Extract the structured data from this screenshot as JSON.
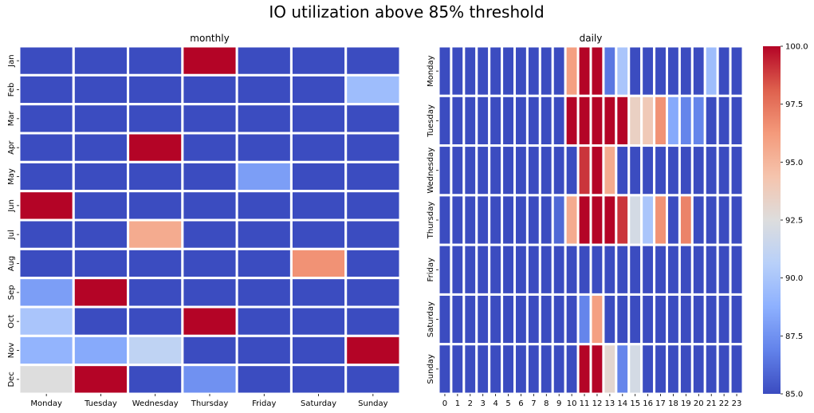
{
  "title": "IO utilization above 85% threshold",
  "chart_data": [
    {
      "type": "heatmap",
      "title": "monthly",
      "x_categories": [
        "Monday",
        "Tuesday",
        "Wednesday",
        "Thursday",
        "Friday",
        "Saturday",
        "Sunday"
      ],
      "y_categories": [
        "Jan",
        "Feb",
        "Mar",
        "Apr",
        "May",
        "Jun",
        "Jul",
        "Aug",
        "Sep",
        "Oct",
        "Nov",
        "Dec"
      ],
      "values": [
        [
          85,
          85,
          85,
          100,
          85,
          85,
          85
        ],
        [
          85,
          85,
          85,
          85,
          85,
          85,
          89.5
        ],
        [
          85,
          85,
          85,
          85,
          85,
          85,
          85
        ],
        [
          85,
          85,
          100,
          85,
          85,
          85,
          85
        ],
        [
          85,
          85,
          85,
          85,
          88,
          85,
          85
        ],
        [
          100,
          85,
          85,
          85,
          85,
          85,
          85
        ],
        [
          85,
          85,
          95.5,
          85,
          85,
          85,
          85
        ],
        [
          85,
          85,
          85,
          85,
          85,
          96.5,
          85
        ],
        [
          88,
          100,
          85,
          85,
          85,
          85,
          85
        ],
        [
          90,
          85,
          85,
          100,
          85,
          85,
          85
        ],
        [
          89,
          88.5,
          91,
          85,
          85,
          85,
          100
        ],
        [
          92.5,
          100,
          85,
          87.5,
          85,
          85,
          85
        ]
      ],
      "colormap": "coolwarm",
      "vmin": 85,
      "vmax": 100,
      "colorbar": false
    },
    {
      "type": "heatmap",
      "title": "daily",
      "x_categories": [
        "0",
        "1",
        "2",
        "3",
        "4",
        "5",
        "6",
        "7",
        "8",
        "9",
        "10",
        "11",
        "12",
        "13",
        "14",
        "15",
        "16",
        "17",
        "18",
        "19",
        "20",
        "21",
        "22",
        "23"
      ],
      "y_categories": [
        "Monday",
        "Tuesday",
        "Wednesday",
        "Thursday",
        "Friday",
        "Saturday",
        "Sunday"
      ],
      "values": [
        [
          85,
          85,
          85,
          85,
          85,
          85,
          85,
          85,
          85,
          85,
          96,
          100,
          100,
          86.5,
          90,
          85,
          85,
          85,
          85,
          85,
          85,
          89.5,
          85,
          85
        ],
        [
          85,
          85,
          85,
          85,
          85,
          85,
          85,
          85,
          85,
          85,
          100,
          100,
          100,
          100,
          100,
          93.5,
          94,
          96.5,
          88.5,
          87,
          87,
          85,
          85,
          85
        ],
        [
          85,
          85,
          85,
          85,
          85,
          85,
          85,
          85,
          85,
          85,
          85,
          99,
          100,
          95.5,
          85,
          85,
          85,
          85,
          85,
          85,
          85,
          85,
          85,
          85
        ],
        [
          85,
          85,
          85,
          85,
          85,
          85,
          85,
          85,
          85,
          86,
          95.5,
          100,
          100,
          100,
          99,
          92,
          90,
          96.5,
          85,
          97,
          85,
          85,
          85,
          85
        ],
        [
          85,
          85,
          85,
          85,
          85,
          85,
          85,
          85,
          85,
          85,
          85,
          85,
          85,
          85,
          85,
          85,
          85,
          85,
          85,
          85,
          85,
          85,
          85,
          85
        ],
        [
          85,
          85,
          85,
          85,
          85,
          85,
          85,
          85,
          85,
          85,
          85,
          87,
          96,
          85,
          85,
          85,
          85,
          85,
          85,
          85,
          85,
          85,
          85,
          85
        ],
        [
          85,
          85,
          85,
          85,
          85,
          85,
          85,
          85,
          85,
          85,
          85,
          100,
          100,
          93,
          87,
          92,
          85,
          85,
          85,
          85,
          85,
          85,
          85,
          85
        ]
      ],
      "colormap": "coolwarm",
      "vmin": 85,
      "vmax": 100,
      "colorbar": true,
      "colorbar_ticks": [
        "85.0",
        "87.5",
        "90.0",
        "92.5",
        "95.0",
        "97.5",
        "100.0"
      ]
    }
  ]
}
